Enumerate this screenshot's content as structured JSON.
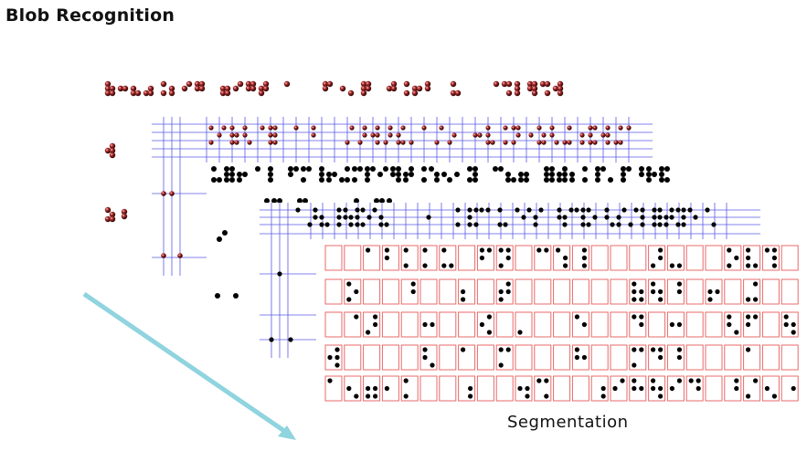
{
  "title": "Blob Recognition",
  "caption": "Segmentation",
  "colors": {
    "dots_raw": "#8b1a1a",
    "dots_processed": "#000000",
    "grid_lines": "#5a5ae6",
    "segment_boxes": "#e86a6a",
    "arrow": "#8fd4df"
  }
}
